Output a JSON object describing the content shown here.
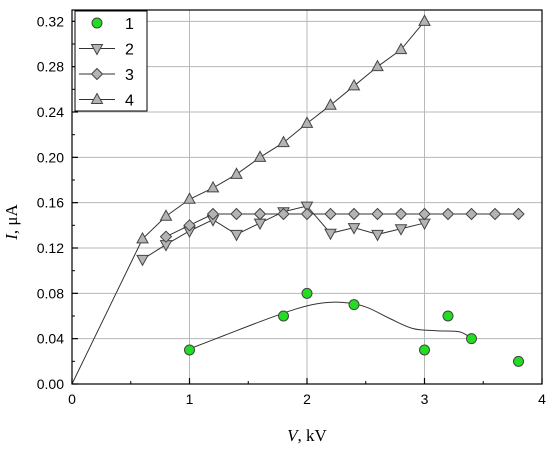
{
  "chart_data": {
    "type": "scatter",
    "xlabel_var": "V",
    "xlabel_unit": ", kV",
    "ylabel_var": "I",
    "ylabel_unit": ", μA",
    "xlim": [
      0,
      4
    ],
    "ylim": [
      0,
      0.33
    ],
    "xticks": [
      0,
      1,
      2,
      3,
      4
    ],
    "yticks": [
      0.0,
      0.04,
      0.08,
      0.12,
      0.16,
      0.2,
      0.24,
      0.28,
      0.32
    ],
    "xtick_labels": [
      "0",
      "1",
      "2",
      "3",
      "4"
    ],
    "ytick_labels": [
      "0.00",
      "0.04",
      "0.08",
      "0.12",
      "0.16",
      "0.20",
      "0.24",
      "0.28",
      "0.32"
    ],
    "grid": true,
    "legend_position": "top-left",
    "series": [
      {
        "name": "1",
        "marker": "circle",
        "fill": "#22dd22",
        "line": "smooth-fit",
        "x": [
          1.0,
          1.8,
          2.0,
          2.4,
          3.0,
          3.2,
          3.4,
          3.8
        ],
        "y": [
          0.03,
          0.06,
          0.08,
          0.07,
          0.03,
          0.06,
          0.04,
          0.02
        ],
        "fit_x": [
          1.0,
          1.3,
          1.6,
          1.9,
          2.1,
          2.3,
          2.5,
          2.7,
          2.9,
          3.1,
          3.3,
          3.4
        ],
        "fit_y": [
          0.031,
          0.043,
          0.055,
          0.066,
          0.071,
          0.072,
          0.068,
          0.058,
          0.049,
          0.047,
          0.046,
          0.04
        ]
      },
      {
        "name": "2",
        "marker": "triangle-down",
        "fill": "#b4b4b4",
        "line": "connect",
        "x": [
          0.6,
          0.8,
          1.0,
          1.2,
          1.4,
          1.6,
          1.8,
          2.0,
          2.2,
          2.4,
          2.6,
          2.8,
          3.0
        ],
        "y": [
          0.11,
          0.123,
          0.135,
          0.145,
          0.132,
          0.142,
          0.152,
          0.157,
          0.133,
          0.138,
          0.132,
          0.137,
          0.142
        ]
      },
      {
        "name": "3",
        "marker": "diamond",
        "fill": "#b4b4b4",
        "line": "connect",
        "x": [
          0.8,
          1.0,
          1.2,
          1.4,
          1.6,
          1.8,
          2.0,
          2.2,
          2.4,
          2.6,
          2.8,
          3.0,
          3.2,
          3.4,
          3.6,
          3.8
        ],
        "y": [
          0.13,
          0.14,
          0.15,
          0.15,
          0.15,
          0.15,
          0.15,
          0.15,
          0.15,
          0.15,
          0.15,
          0.15,
          0.15,
          0.15,
          0.15,
          0.15
        ]
      },
      {
        "name": "4",
        "marker": "triangle-up",
        "fill": "#b4b4b4",
        "line": "connect",
        "x": [
          0.0,
          0.6,
          0.8,
          1.0,
          1.2,
          1.4,
          1.6,
          1.8,
          2.0,
          2.2,
          2.4,
          2.6,
          2.8,
          3.0
        ],
        "y": [
          0.0,
          0.128,
          0.148,
          0.163,
          0.173,
          0.185,
          0.2,
          0.213,
          0.23,
          0.246,
          0.263,
          0.28,
          0.295,
          0.32
        ],
        "marker_from_index": 1
      }
    ]
  }
}
